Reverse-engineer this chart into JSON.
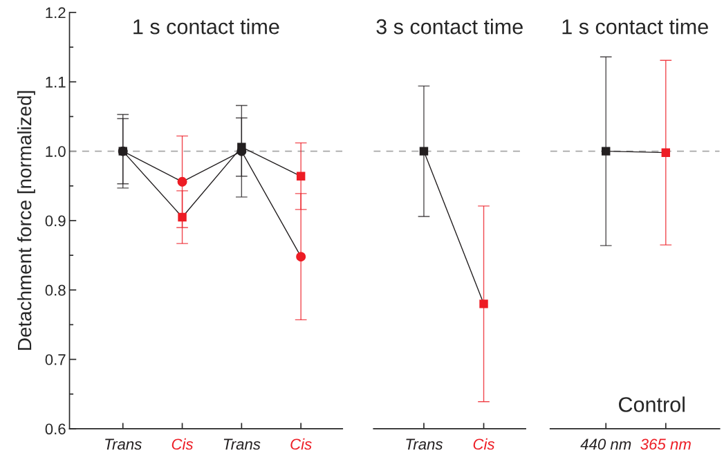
{
  "chart_data": [
    {
      "type": "line",
      "title": "1 s contact time",
      "ylabel": "Detachment force [normalized]",
      "categories": [
        "Trans",
        "Cis",
        "Trans",
        "Cis"
      ],
      "ylim": [
        0.6,
        1.2
      ],
      "yticks": [
        0.6,
        0.7,
        0.8,
        0.9,
        {
          "value": 1.0,
          "label": "1.0"
        },
        1.1,
        1.2
      ],
      "grid": false,
      "legend": false,
      "ref_lines": [
        {
          "axis": "y",
          "value": 1.0,
          "color": "#a6a6a6",
          "line_style": "dashed"
        }
      ],
      "series": [
        {
          "color": "#231f20",
          "colors": [
            "#231f20",
            "#ed1c24",
            "#231f20",
            "#ed1c24"
          ],
          "marker": "square",
          "values": [
            1.0,
            0.905,
            1.006,
            0.964
          ],
          "errors": [
            0.053,
            0.038,
            0.042,
            0.048
          ]
        },
        {
          "color": "#231f20",
          "colors": [
            "#231f20",
            "#ed1c24",
            "#231f20",
            "#ed1c24"
          ],
          "marker": "circle",
          "values": [
            1.0,
            0.956,
            1.0,
            0.848
          ],
          "errors": [
            0.047,
            0.066,
            0.066,
            0.091
          ]
        }
      ]
    },
    {
      "type": "line",
      "title": "3 s contact time",
      "categories": [
        "Trans",
        "Cis"
      ],
      "ylim": [
        0.6,
        1.2
      ],
      "tick_labels": "x",
      "grid": false,
      "legend": false,
      "ref_lines": [
        {
          "axis": "y",
          "value": 1.0,
          "color": "#a6a6a6",
          "line_style": "dashed"
        }
      ],
      "series": [
        {
          "color": "#231f20",
          "colors": [
            "#231f20",
            "#ed1c24"
          ],
          "marker": "square",
          "values": [
            1.0,
            0.78
          ],
          "errors": [
            0.094,
            0.141
          ]
        }
      ]
    },
    {
      "type": "line",
      "title": "1 s contact time",
      "categories": [
        "440 nm",
        "365 nm"
      ],
      "ylim": [
        0.6,
        1.2
      ],
      "tick_labels": "x",
      "grid": false,
      "legend": false,
      "annotations": [
        "Control"
      ],
      "ref_lines": [
        {
          "axis": "y",
          "value": 1.0,
          "color": "#a6a6a6",
          "line_style": "dashed"
        }
      ],
      "series": [
        {
          "color": "#231f20",
          "colors": [
            "#231f20",
            "#ed1c24"
          ],
          "marker": "square",
          "values": [
            1.0,
            0.998
          ],
          "errors": [
            0.136,
            0.133
          ]
        }
      ]
    }
  ]
}
